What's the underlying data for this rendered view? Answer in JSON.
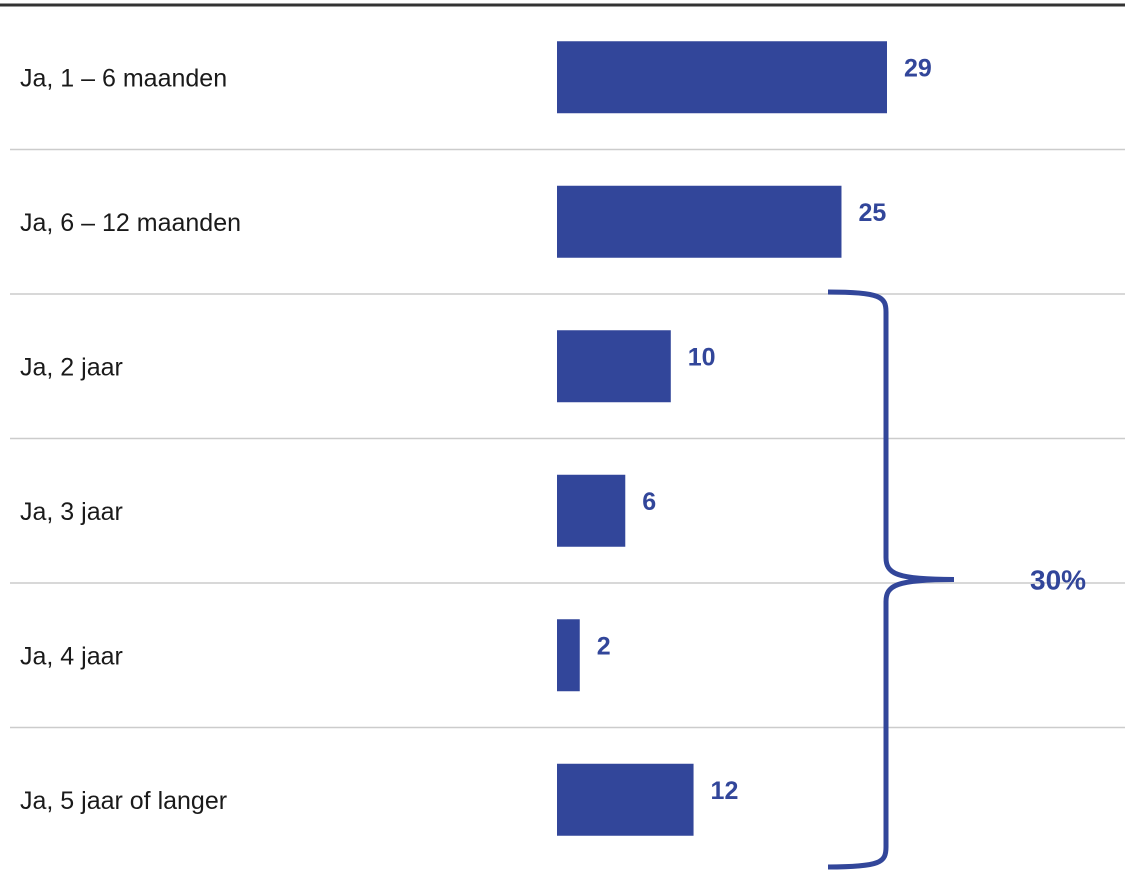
{
  "chart_data": {
    "type": "bar",
    "orientation": "horizontal",
    "categories": [
      "Ja, 1 – 6 maanden",
      "Ja, 6 – 12 maanden",
      "Ja, 2 jaar",
      "Ja, 3 jaar",
      "Ja, 4 jaar",
      "Ja, 5 jaar of langer"
    ],
    "values": [
      29,
      25,
      10,
      6,
      2,
      12
    ],
    "data_labels": [
      "29",
      "25",
      "10",
      "6",
      "2",
      "12"
    ],
    "title": "",
    "xlabel": "",
    "ylabel": "",
    "grid": false,
    "bracket": {
      "from_category": "Ja, 2 jaar",
      "to_category": "Ja, 5 jaar of langer",
      "label": "30%"
    }
  },
  "colors": {
    "bar": "#32469a",
    "text": "#1a1a1a",
    "separator": "#cccccc",
    "top_rule": "#333333"
  }
}
